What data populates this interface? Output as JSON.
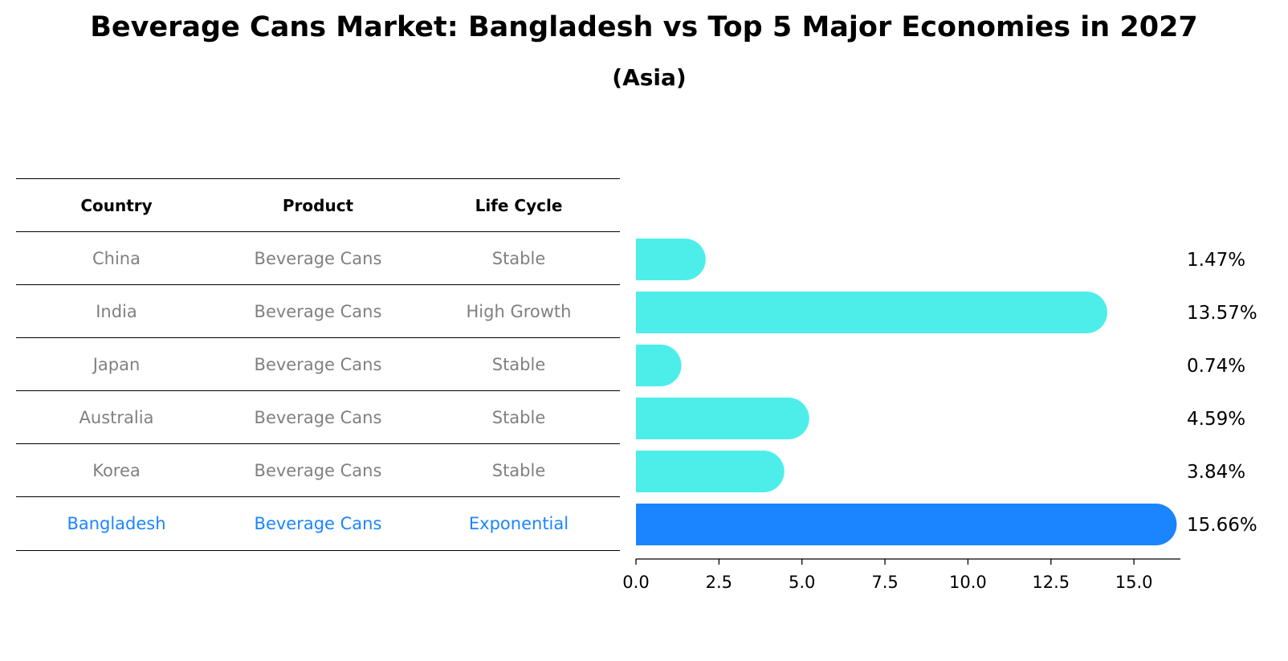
{
  "title": "Beverage Cans Market: Bangladesh vs Top 5 Major Economies in 2027",
  "subtitle": "(Asia)",
  "table": {
    "headers": [
      "Country",
      "Product",
      "Life Cycle"
    ],
    "rows": [
      {
        "country": "China",
        "product": "Beverage Cans",
        "life_cycle": "Stable"
      },
      {
        "country": "India",
        "product": "Beverage Cans",
        "life_cycle": "High Growth"
      },
      {
        "country": "Japan",
        "product": "Beverage Cans",
        "life_cycle": "Stable"
      },
      {
        "country": "Australia",
        "product": "Beverage Cans",
        "life_cycle": "Stable"
      },
      {
        "country": "Korea",
        "product": "Beverage Cans",
        "life_cycle": "Stable"
      },
      {
        "country": "Bangladesh",
        "product": "Beverage Cans",
        "life_cycle": "Exponential"
      }
    ]
  },
  "chart_data": {
    "type": "bar",
    "orientation": "horizontal",
    "categories": [
      "China",
      "India",
      "Japan",
      "Australia",
      "Korea",
      "Bangladesh"
    ],
    "values": [
      1.47,
      13.57,
      0.74,
      4.59,
      3.84,
      15.66
    ],
    "value_labels": [
      "1.47%",
      "13.57%",
      "0.74%",
      "4.59%",
      "3.84%",
      "15.66%"
    ],
    "highlight": "Bangladesh",
    "colors": {
      "default": "#4deeea",
      "highlight": "#1a85ff"
    },
    "xlim": [
      0,
      16.4
    ],
    "xticks": [
      0.0,
      2.5,
      5.0,
      7.5,
      10.0,
      12.5,
      15.0
    ],
    "xtick_labels": [
      "0.0",
      "2.5",
      "5.0",
      "7.5",
      "10.0",
      "12.5",
      "15.0"
    ],
    "title": "Beverage Cans Market: Bangladesh vs Top 5 Major Economies in 2027",
    "subtitle": "(Asia)",
    "xlabel": "",
    "ylabel": ""
  }
}
